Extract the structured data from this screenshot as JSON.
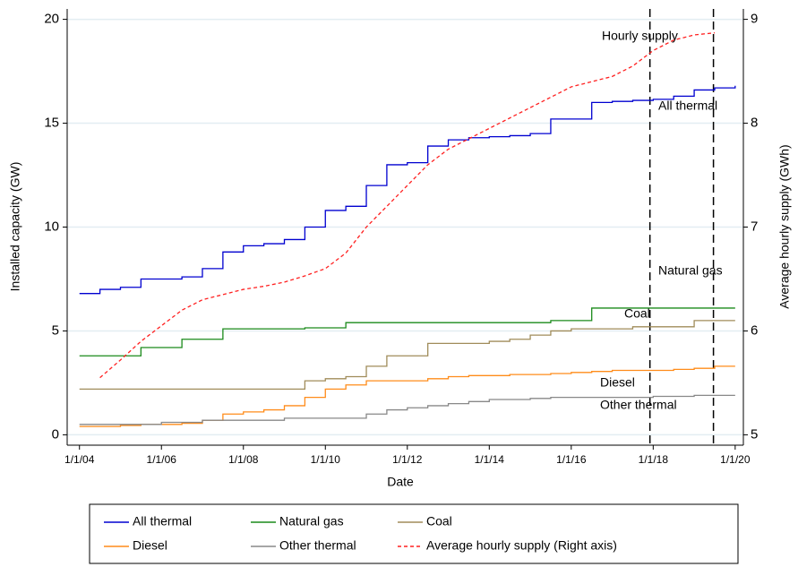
{
  "chart_data": {
    "type": "line",
    "x_label": "Date",
    "y_label": "Installed capacity (GW)",
    "y2_label": "Average hourly supply (GWh)",
    "x": [
      2004,
      2004.5,
      2005,
      2005.5,
      2006,
      2006.5,
      2007,
      2007.5,
      2008,
      2008.5,
      2009,
      2009.5,
      2010,
      2010.5,
      2011,
      2011.5,
      2012,
      2012.5,
      2013,
      2013.5,
      2014,
      2014.5,
      2015,
      2015.5,
      2016,
      2016.5,
      2017,
      2017.5,
      2018,
      2018.5,
      2019,
      2019.5,
      2020
    ],
    "xlim": [
      2003.7,
      2020.2
    ],
    "xticks": [
      {
        "value": 2004,
        "label": "1/1/04"
      },
      {
        "value": 2006,
        "label": "1/1/06"
      },
      {
        "value": 2008,
        "label": "1/1/08"
      },
      {
        "value": 2010,
        "label": "1/1/10"
      },
      {
        "value": 2012,
        "label": "1/1/12"
      },
      {
        "value": 2014,
        "label": "1/1/14"
      },
      {
        "value": 2016,
        "label": "1/1/16"
      },
      {
        "value": 2018,
        "label": "1/1/18"
      },
      {
        "value": 2020,
        "label": "1/1/20"
      }
    ],
    "ylim": [
      -0.5,
      20.5
    ],
    "yticks": [
      0,
      5,
      10,
      15,
      20
    ],
    "y2lim": [
      4.9,
      9.1
    ],
    "y2ticks": [
      5,
      6,
      7,
      8,
      9
    ],
    "grid": true,
    "vlines": [
      2017.92,
      2019.47
    ],
    "annotations": [
      "Hourly supply",
      "All thermal",
      "Natural gas",
      "Coal",
      "Diesel",
      "Other thermal"
    ],
    "series": [
      {
        "name": "All thermal",
        "color": "#0000d0",
        "step": true,
        "values": [
          6.8,
          7.0,
          7.1,
          7.5,
          7.5,
          7.6,
          8.0,
          8.8,
          9.1,
          9.2,
          9.4,
          10.0,
          10.8,
          11.0,
          12.0,
          13.0,
          13.1,
          13.9,
          14.2,
          14.3,
          14.35,
          14.4,
          14.5,
          15.2,
          15.2,
          16.0,
          16.05,
          16.1,
          16.15,
          16.3,
          16.6,
          16.7,
          16.8
        ]
      },
      {
        "name": "Natural gas",
        "color": "#1a8a1a",
        "step": true,
        "values": [
          3.8,
          3.8,
          3.8,
          4.2,
          4.2,
          4.6,
          4.6,
          5.1,
          5.1,
          5.1,
          5.1,
          5.15,
          5.15,
          5.4,
          5.4,
          5.4,
          5.4,
          5.4,
          5.4,
          5.4,
          5.4,
          5.4,
          5.4,
          5.5,
          5.5,
          6.1,
          6.1,
          6.1,
          6.1,
          6.1,
          6.1,
          6.1,
          6.1
        ]
      },
      {
        "name": "Coal",
        "color": "#a08c5a",
        "step": true,
        "values": [
          2.2,
          2.2,
          2.2,
          2.2,
          2.2,
          2.2,
          2.2,
          2.2,
          2.2,
          2.2,
          2.2,
          2.6,
          2.7,
          2.8,
          3.3,
          3.8,
          3.8,
          4.4,
          4.4,
          4.4,
          4.5,
          4.6,
          4.8,
          5.0,
          5.1,
          5.1,
          5.1,
          5.2,
          5.2,
          5.2,
          5.5,
          5.5,
          5.5
        ]
      },
      {
        "name": "Diesel",
        "color": "#ff8c1a",
        "step": true,
        "values": [
          0.4,
          0.4,
          0.45,
          0.5,
          0.5,
          0.55,
          0.7,
          1.0,
          1.1,
          1.2,
          1.4,
          1.8,
          2.2,
          2.4,
          2.6,
          2.6,
          2.6,
          2.7,
          2.8,
          2.85,
          2.85,
          2.9,
          2.9,
          2.95,
          3.0,
          3.05,
          3.1,
          3.1,
          3.1,
          3.15,
          3.2,
          3.3,
          3.3
        ]
      },
      {
        "name": "Other thermal",
        "color": "#888888",
        "step": true,
        "values": [
          0.5,
          0.5,
          0.5,
          0.5,
          0.6,
          0.6,
          0.7,
          0.7,
          0.7,
          0.7,
          0.8,
          0.8,
          0.8,
          0.8,
          1.0,
          1.2,
          1.3,
          1.4,
          1.5,
          1.6,
          1.7,
          1.7,
          1.75,
          1.8,
          1.8,
          1.8,
          1.8,
          1.8,
          1.85,
          1.85,
          1.9,
          1.9,
          1.9
        ]
      },
      {
        "name": "Average hourly supply (Right axis)",
        "color": "#ff2020",
        "axis": "y2",
        "dash": true,
        "values": [
          null,
          5.55,
          5.72,
          5.9,
          6.05,
          6.2,
          6.3,
          6.35,
          6.4,
          6.43,
          6.47,
          6.53,
          6.6,
          6.75,
          7.0,
          7.2,
          7.4,
          7.6,
          7.75,
          7.85,
          7.95,
          8.05,
          8.15,
          8.25,
          8.35,
          8.4,
          8.45,
          8.55,
          8.7,
          8.8,
          8.85,
          8.87,
          null
        ]
      }
    ]
  }
}
